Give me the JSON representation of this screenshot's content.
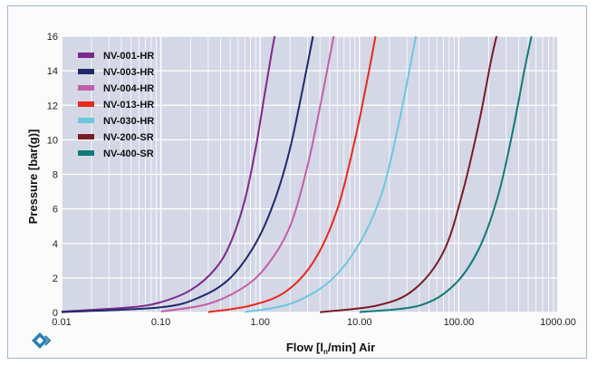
{
  "chart_data": {
    "type": "line",
    "title": "",
    "xlabel": "Flow [l",
    "xlabel_sub": "n",
    "xlabel_suffix": "/min] Air",
    "ylabel": "Pressure [bar(g)]",
    "x_scale": "log",
    "xlim": [
      0.01,
      1000
    ],
    "ylim": [
      0,
      16
    ],
    "x_ticks": [
      0.01,
      0.1,
      1,
      10,
      100,
      1000
    ],
    "x_tick_labels": [
      "0.01",
      "0.10",
      "1.00",
      "10.00",
      "100.00",
      "1000.00"
    ],
    "y_ticks": [
      0,
      2,
      4,
      6,
      8,
      10,
      12,
      14,
      16
    ],
    "y_tick_labels": [
      "0",
      "2",
      "4",
      "6",
      "8",
      "10",
      "12",
      "14",
      "16"
    ],
    "grid": true,
    "legend_position": "top-left",
    "series": [
      {
        "name": "NV-001-HR",
        "color": "#7b2a8b",
        "points": [
          [
            0.01,
            0.05
          ],
          [
            0.05,
            0.3
          ],
          [
            0.1,
            0.6
          ],
          [
            0.2,
            1.3
          ],
          [
            0.35,
            2.5
          ],
          [
            0.5,
            4.0
          ],
          [
            0.7,
            6.5
          ],
          [
            0.9,
            9.5
          ],
          [
            1.1,
            12.5
          ],
          [
            1.3,
            15.0
          ],
          [
            1.4,
            16.0
          ]
        ]
      },
      {
        "name": "NV-003-HR",
        "color": "#1f2a6b",
        "points": [
          [
            0.01,
            0.02
          ],
          [
            0.1,
            0.3
          ],
          [
            0.25,
            0.9
          ],
          [
            0.5,
            2.0
          ],
          [
            0.9,
            4.0
          ],
          [
            1.4,
            6.5
          ],
          [
            2.0,
            9.5
          ],
          [
            2.8,
            13.5
          ],
          [
            3.4,
            16.0
          ]
        ]
      },
      {
        "name": "NV-004-HR",
        "color": "#c25ea8",
        "points": [
          [
            0.1,
            0.05
          ],
          [
            0.3,
            0.5
          ],
          [
            0.7,
            1.5
          ],
          [
            1.2,
            2.8
          ],
          [
            2.0,
            5.0
          ],
          [
            3.0,
            8.5
          ],
          [
            4.2,
            12.5
          ],
          [
            5.5,
            16.0
          ]
        ]
      },
      {
        "name": "NV-013-HR",
        "color": "#e8291c",
        "points": [
          [
            0.3,
            0.02
          ],
          [
            0.8,
            0.4
          ],
          [
            1.8,
            1.2
          ],
          [
            3.5,
            3.0
          ],
          [
            6.0,
            6.0
          ],
          [
            9.0,
            10.0
          ],
          [
            12.0,
            13.5
          ],
          [
            14.5,
            16.0
          ]
        ]
      },
      {
        "name": "NV-030-HR",
        "color": "#6cc7e0",
        "points": [
          [
            0.7,
            0.02
          ],
          [
            2.0,
            0.5
          ],
          [
            5.0,
            1.8
          ],
          [
            10.0,
            4.0
          ],
          [
            17.0,
            7.0
          ],
          [
            25.0,
            11.0
          ],
          [
            33.0,
            14.5
          ],
          [
            37.0,
            16.0
          ]
        ]
      },
      {
        "name": "NV-200-SR",
        "color": "#7a1c22",
        "points": [
          [
            4.0,
            0.02
          ],
          [
            15.0,
            0.4
          ],
          [
            35.0,
            1.3
          ],
          [
            70.0,
            3.5
          ],
          [
            110.0,
            7.0
          ],
          [
            160.0,
            11.0
          ],
          [
            210.0,
            14.5
          ],
          [
            240.0,
            16.0
          ]
        ]
      },
      {
        "name": "NV-400-SR",
        "color": "#127a7a",
        "points": [
          [
            10.0,
            0.02
          ],
          [
            40.0,
            0.4
          ],
          [
            90.0,
            1.6
          ],
          [
            160.0,
            3.7
          ],
          [
            250.0,
            6.8
          ],
          [
            350.0,
            10.5
          ],
          [
            450.0,
            13.8
          ],
          [
            540.0,
            16.0
          ]
        ]
      }
    ]
  },
  "logo": {
    "name": "company-logo",
    "color": "#2a7fb0"
  }
}
